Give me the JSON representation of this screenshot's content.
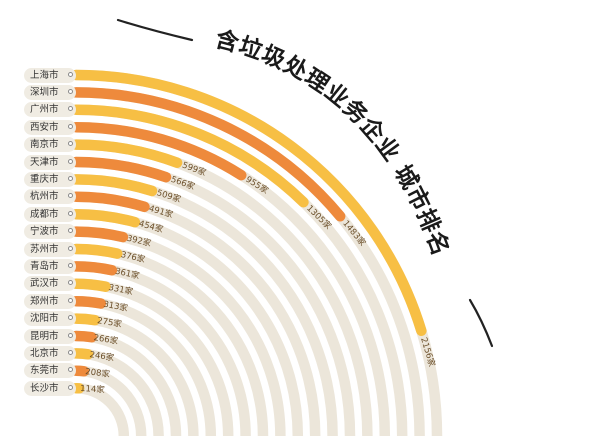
{
  "colors": {
    "track": "#ece6da",
    "gold": "#f7bf44",
    "orange": "#ee8a3c",
    "text": "#1a1a1a",
    "value_text": "#6b4f2a"
  },
  "chart_data": {
    "type": "radial-bar",
    "title": "含垃圾处理业务企业 城市排名",
    "unit": "家",
    "categories": [
      "上海市",
      "深圳市",
      "广州市",
      "西安市",
      "南京市",
      "天津市",
      "重庆市",
      "杭州市",
      "成都市",
      "宁波市",
      "苏州市",
      "青岛市",
      "武汉市",
      "郑州市",
      "沈阳市",
      "昆明市",
      "北京市",
      "东莞市",
      "长沙市"
    ],
    "value_labels": [
      "2156家",
      "1483家",
      "1305家",
      "955家",
      "599家",
      "566家",
      "509家",
      "491家",
      "454家",
      "392家",
      "376家",
      "361家",
      "331家",
      "313家",
      "275家",
      "266家",
      "246家",
      "208家",
      "114家"
    ],
    "values": [
      2156,
      1483,
      1305,
      955,
      599,
      566,
      509,
      491,
      454,
      392,
      376,
      361,
      331,
      313,
      275,
      266,
      246,
      208,
      114
    ],
    "bar_colors": [
      "gold",
      "orange",
      "gold",
      "orange",
      "gold",
      "orange",
      "gold",
      "orange",
      "gold",
      "orange",
      "gold",
      "orange",
      "gold",
      "orange",
      "gold",
      "orange",
      "gold",
      "orange",
      "gold"
    ],
    "legend": "none",
    "grid": false
  }
}
